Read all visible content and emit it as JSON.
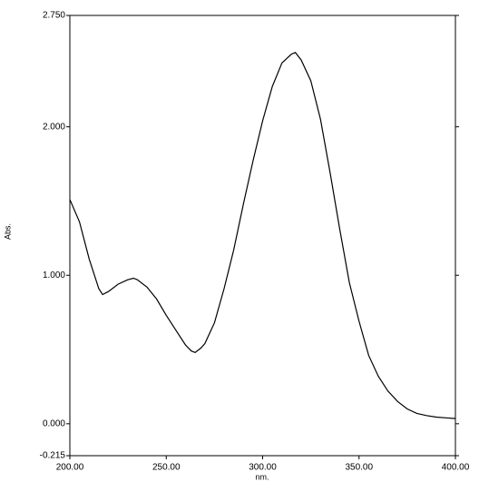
{
  "chart_data": {
    "type": "line",
    "xlabel": "nm.",
    "ylabel": "Abs.",
    "xlim": [
      200,
      400
    ],
    "ylim": [
      -0.215,
      2.75
    ],
    "xticks": [
      {
        "value": 200,
        "label": "200.00"
      },
      {
        "value": 250,
        "label": "250.00"
      },
      {
        "value": 300,
        "label": "300.00"
      },
      {
        "value": 350,
        "label": "350.00"
      },
      {
        "value": 400,
        "label": "400.00"
      }
    ],
    "yticks": [
      {
        "value": -0.215,
        "label": "-0.215"
      },
      {
        "value": 0,
        "label": "0.000"
      },
      {
        "value": 1,
        "label": "1.000"
      },
      {
        "value": 2,
        "label": "2.000"
      },
      {
        "value": 2.75,
        "label": "2.750"
      }
    ],
    "series": [
      {
        "color": "#000000",
        "x": [
          200,
          205,
          210,
          215,
          217,
          220,
          225,
          230,
          233,
          235,
          240,
          245,
          250,
          255,
          260,
          263,
          265,
          268,
          270,
          275,
          280,
          285,
          290,
          295,
          300,
          305,
          310,
          315,
          317,
          320,
          325,
          330,
          335,
          340,
          345,
          350,
          355,
          360,
          365,
          370,
          375,
          380,
          385,
          390,
          395,
          400
        ],
        "values": [
          1.51,
          1.36,
          1.11,
          0.91,
          0.87,
          0.89,
          0.94,
          0.97,
          0.98,
          0.97,
          0.92,
          0.84,
          0.73,
          0.63,
          0.53,
          0.49,
          0.48,
          0.51,
          0.54,
          0.68,
          0.91,
          1.17,
          1.48,
          1.77,
          2.04,
          2.27,
          2.43,
          2.49,
          2.5,
          2.45,
          2.31,
          2.05,
          1.69,
          1.31,
          0.95,
          0.69,
          0.46,
          0.32,
          0.22,
          0.15,
          0.1,
          0.07,
          0.055,
          0.045,
          0.04,
          0.035
        ]
      }
    ]
  }
}
